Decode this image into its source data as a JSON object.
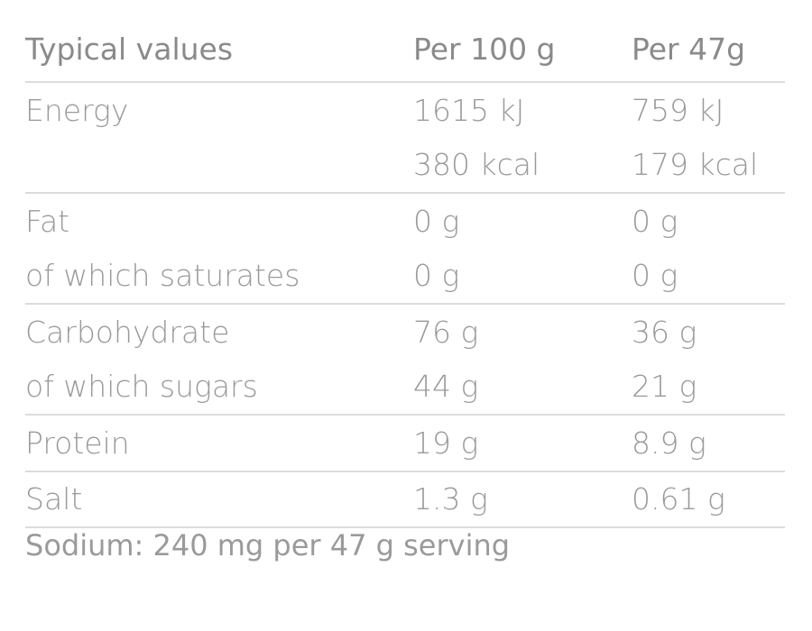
{
  "header": {
    "label": "Typical values",
    "col1": "Per 100 g",
    "col2": "Per 47g"
  },
  "groups": [
    {
      "rows": [
        {
          "label": "Energy",
          "per100": "1615 kJ",
          "perServing": "759 kJ"
        },
        {
          "label": "",
          "per100": "380 kcal",
          "perServing": "179 kcal"
        }
      ]
    },
    {
      "rows": [
        {
          "label": "Fat",
          "per100": "0 g",
          "perServing": "0 g"
        },
        {
          "label": "of which saturates",
          "per100": "0 g",
          "perServing": "0 g"
        }
      ]
    },
    {
      "rows": [
        {
          "label": "Carbohydrate",
          "per100": "76 g",
          "perServing": "36 g"
        },
        {
          "label": "of which sugars",
          "per100": "44 g",
          "perServing": "21 g"
        }
      ]
    },
    {
      "rows": [
        {
          "label": "Protein",
          "per100": "19 g",
          "perServing": "8.9 g"
        }
      ]
    },
    {
      "rows": [
        {
          "label": "Salt",
          "per100": "1.3 g",
          "perServing": "0.61 g"
        }
      ]
    }
  ],
  "footnote": "Sodium: 240 mg per 47 g serving"
}
